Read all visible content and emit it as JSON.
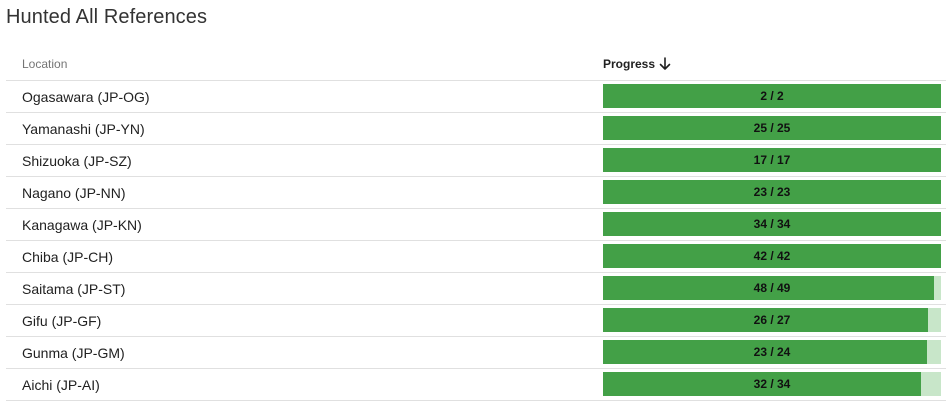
{
  "title": "Hunted All References",
  "table": {
    "columns": {
      "location": "Location",
      "progress": "Progress"
    },
    "sort_icon": "arrow-down-icon",
    "colors": {
      "bar_fill": "#43a047",
      "bar_track": "#c8e6c9"
    },
    "rows": [
      {
        "location": "Ogasawara (JP-OG)",
        "done": 2,
        "total": 2,
        "label": "2 / 2"
      },
      {
        "location": "Yamanashi (JP-YN)",
        "done": 25,
        "total": 25,
        "label": "25 / 25"
      },
      {
        "location": "Shizuoka (JP-SZ)",
        "done": 17,
        "total": 17,
        "label": "17 / 17"
      },
      {
        "location": "Nagano (JP-NN)",
        "done": 23,
        "total": 23,
        "label": "23 / 23"
      },
      {
        "location": "Kanagawa (JP-KN)",
        "done": 34,
        "total": 34,
        "label": "34 / 34"
      },
      {
        "location": "Chiba (JP-CH)",
        "done": 42,
        "total": 42,
        "label": "42 / 42"
      },
      {
        "location": "Saitama (JP-ST)",
        "done": 48,
        "total": 49,
        "label": "48 / 49"
      },
      {
        "location": "Gifu (JP-GF)",
        "done": 26,
        "total": 27,
        "label": "26 / 27"
      },
      {
        "location": "Gunma (JP-GM)",
        "done": 23,
        "total": 24,
        "label": "23 / 24"
      },
      {
        "location": "Aichi (JP-AI)",
        "done": 32,
        "total": 34,
        "label": "32 / 34"
      }
    ]
  }
}
